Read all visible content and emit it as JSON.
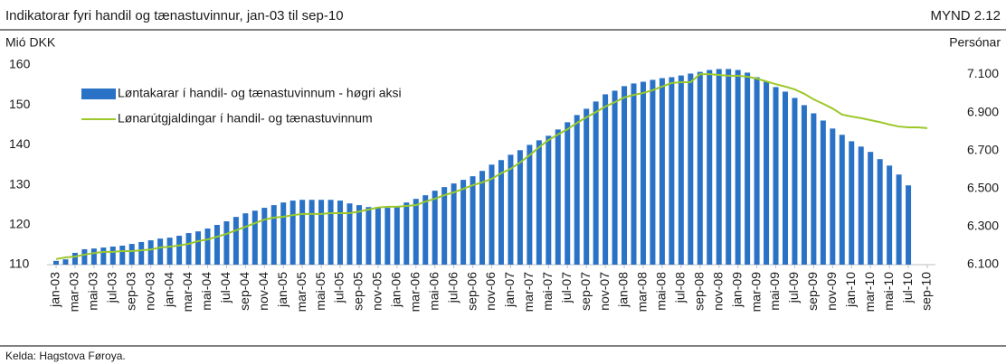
{
  "chart_data": {
    "type": "combo",
    "title": "Indikatorar fyri handil og tænastuvinnur, jan-03 til sep-10",
    "figure_number": "MYND 2.12",
    "y_label": "Mió DKK",
    "y2_label": "Persónar",
    "source": "Kelda: Hagstova Føroya.",
    "categories": [
      "jan-03",
      null,
      "mar-03",
      null,
      "mai-03",
      null,
      "jul-03",
      null,
      "sep-03",
      null,
      "nov-03",
      null,
      "jan-04",
      null,
      "mar-04",
      null,
      "mai-04",
      null,
      "jul-04",
      null,
      "sep-04",
      null,
      "nov-04",
      null,
      "jan-05",
      null,
      "mar-05",
      null,
      "mai-05",
      null,
      "jul-05",
      null,
      "sep-05",
      null,
      "nov-05",
      null,
      "jan-06",
      null,
      "mar-06",
      null,
      "mai-06",
      null,
      "jul-06",
      null,
      "sep-06",
      null,
      "nov-06",
      null,
      "jan-07",
      null,
      "mar-07",
      null,
      "mai-07",
      null,
      "jul-07",
      null,
      "sep-07",
      null,
      "nov-07",
      null,
      "jan-08",
      null,
      "mar-08",
      null,
      "mai-08",
      null,
      "jul-08",
      null,
      "sep-08",
      null,
      "nov-08",
      null,
      "jan-09",
      null,
      "mar-09",
      null,
      "mai-09",
      null,
      "jul-09",
      null,
      "sep-09",
      null,
      "nov-09",
      null,
      "jan-10",
      null,
      "mar-10",
      null,
      "mai-10",
      null,
      "jul-10",
      null,
      "sep-10"
    ],
    "series": [
      {
        "name": "Løntakarar í handil- og tænastuvinnum - høgri aksi",
        "type": "bar",
        "axis": "y2",
        "color": "#2a72c6",
        "values": [
          6120,
          6128,
          6162,
          6181,
          6185,
          6190,
          6195,
          6200,
          6209,
          6219,
          6228,
          6237,
          6242,
          6252,
          6266,
          6275,
          6290,
          6309,
          6328,
          6351,
          6370,
          6384,
          6399,
          6413,
          6427,
          6437,
          6441,
          6441,
          6441,
          6441,
          6437,
          6422,
          6413,
          6403,
          6403,
          6399,
          6403,
          6427,
          6446,
          6465,
          6489,
          6508,
          6527,
          6546,
          6565,
          6593,
          6626,
          6650,
          6678,
          6702,
          6730,
          6754,
          6778,
          6811,
          6849,
          6887,
          6920,
          6958,
          6996,
          7015,
          7039,
          7053,
          7062,
          7072,
          7081,
          7086,
          7095,
          7105,
          7114,
          7124,
          7129,
          7129,
          7124,
          7110,
          7086,
          7062,
          7034,
          7010,
          6977,
          6939,
          6896,
          6858,
          6816,
          6783,
          6749,
          6721,
          6693,
          6655,
          6621,
          6574,
          6517,
          null,
          null
        ]
      },
      {
        "name": "Lønarútgjaldingar í handil- og tænastuvinnum",
        "type": "line",
        "color": "#9cc82a",
        "values": [
          111.4,
          111.8,
          112.0,
          112.5,
          112.9,
          113.2,
          113.2,
          113.4,
          113.4,
          113.6,
          113.8,
          114.3,
          114.5,
          114.8,
          115.2,
          115.9,
          116.3,
          117.0,
          117.7,
          118.6,
          119.5,
          120.4,
          121.3,
          121.8,
          122.0,
          122.4,
          122.7,
          122.7,
          122.7,
          122.9,
          122.9,
          122.9,
          123.3,
          123.8,
          124.3,
          124.5,
          124.5,
          124.7,
          124.9,
          125.8,
          126.5,
          127.4,
          128.1,
          129.0,
          129.9,
          130.6,
          131.5,
          132.9,
          134.0,
          135.6,
          137.4,
          139.4,
          141.2,
          142.6,
          143.9,
          145.5,
          146.9,
          148.2,
          149.6,
          150.7,
          151.9,
          152.5,
          153.0,
          153.7,
          154.6,
          155.5,
          155.7,
          155.7,
          157.7,
          157.7,
          157.5,
          157.3,
          157.3,
          157.1,
          156.6,
          155.9,
          155.2,
          154.6,
          153.9,
          152.8,
          151.4,
          150.3,
          149.1,
          147.6,
          147.1,
          146.7,
          146.2,
          145.7,
          145.1,
          144.6,
          144.4,
          144.4,
          144.2
        ]
      }
    ],
    "ylim": [
      110,
      160
    ],
    "yticks": [
      110,
      120,
      130,
      140,
      150,
      160
    ],
    "y2lim": [
      6100,
      7150
    ],
    "y2ticks": [
      {
        "value": 6100,
        "label": "6.100"
      },
      {
        "value": 6300,
        "label": "6.300"
      },
      {
        "value": 6500,
        "label": "6.500"
      },
      {
        "value": 6700,
        "label": "6.700"
      },
      {
        "value": 6900,
        "label": "6.900"
      },
      {
        "value": 7100,
        "label": "7.100"
      }
    ],
    "legend": "upper left"
  }
}
